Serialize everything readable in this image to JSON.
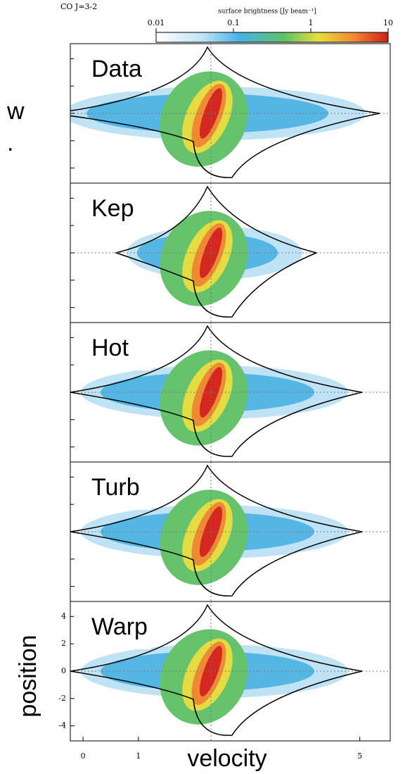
{
  "chart_data": {
    "type": "pv-diagram",
    "title": "CO J=3-2",
    "colorbar": {
      "label": "surface brightness [Jy beam⁻¹]",
      "log": true,
      "xlim": [
        0.01,
        10
      ],
      "xticks": [
        0.01,
        0.1,
        1,
        10
      ]
    },
    "panels": [
      "Data",
      "Kep",
      "Hot",
      "Turb",
      "Warp"
    ],
    "xlabel": "velocity",
    "ylabel": "position",
    "xlim": [
      -0.23,
      5.55
    ],
    "xticks": [
      0,
      1,
      5
    ],
    "ylim": [
      -5.1,
      5.1
    ],
    "yticks": [
      4,
      2,
      0,
      -2,
      -4
    ],
    "side_text": [
      "w",
      "."
    ]
  }
}
